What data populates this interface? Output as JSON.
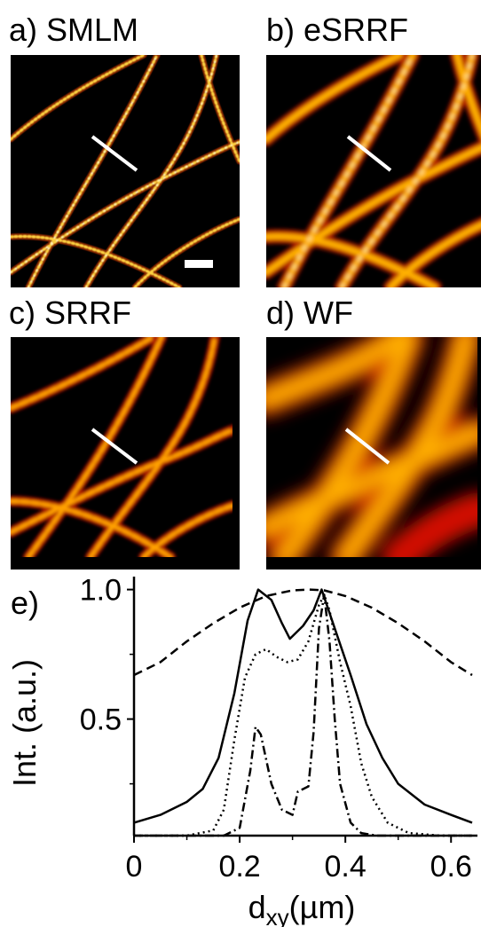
{
  "panels": {
    "a": {
      "label": "a) SMLM"
    },
    "b": {
      "label": "b) eSRRF"
    },
    "c": {
      "label": "c) SRRF"
    },
    "d": {
      "label": "d) WF"
    },
    "e": {
      "label": "e)"
    }
  },
  "chart_data": {
    "type": "line",
    "xlabel_main": "d",
    "xlabel_sub": "xy",
    "xlabel_unit": "(µm)",
    "ylabel": "Int. (a.u.)",
    "xlim": [
      0,
      0.65
    ],
    "ylim": [
      0.05,
      1.05
    ],
    "xticks": [
      {
        "value": 0,
        "label": "0"
      },
      {
        "value": 0.2,
        "label": "0.2"
      },
      {
        "value": 0.4,
        "label": "0.4"
      },
      {
        "value": 0.6,
        "label": "0.6"
      }
    ],
    "yticks": [
      {
        "value": 0.5,
        "label": "0.5"
      },
      {
        "value": 1.0,
        "label": "1.0"
      }
    ],
    "series": [
      {
        "style": "solid",
        "x": [
          0,
          0.05,
          0.1,
          0.13,
          0.16,
          0.19,
          0.215,
          0.235,
          0.26,
          0.28,
          0.295,
          0.32,
          0.34,
          0.355,
          0.38,
          0.41,
          0.44,
          0.47,
          0.5,
          0.55,
          0.6,
          0.64
        ],
        "y": [
          0.1,
          0.13,
          0.18,
          0.23,
          0.35,
          0.6,
          0.88,
          1.0,
          0.96,
          0.87,
          0.81,
          0.86,
          0.92,
          1.0,
          0.85,
          0.67,
          0.48,
          0.35,
          0.25,
          0.17,
          0.13,
          0.1
        ]
      },
      {
        "style": "dotted",
        "x": [
          0,
          0.1,
          0.15,
          0.17,
          0.19,
          0.21,
          0.23,
          0.25,
          0.27,
          0.29,
          0.31,
          0.33,
          0.35,
          0.36,
          0.37,
          0.39,
          0.41,
          0.43,
          0.45,
          0.48,
          0.52,
          0.58,
          0.64
        ],
        "y": [
          0.05,
          0.05,
          0.07,
          0.15,
          0.42,
          0.66,
          0.75,
          0.77,
          0.74,
          0.72,
          0.73,
          0.8,
          0.94,
          0.98,
          0.92,
          0.72,
          0.55,
          0.33,
          0.2,
          0.1,
          0.06,
          0.05,
          0.05
        ]
      },
      {
        "style": "dashdot",
        "x": [
          0,
          0.17,
          0.2,
          0.22,
          0.23,
          0.24,
          0.26,
          0.28,
          0.3,
          0.31,
          0.33,
          0.34,
          0.35,
          0.36,
          0.37,
          0.38,
          0.39,
          0.41,
          0.43,
          0.46,
          0.5,
          0.64
        ],
        "y": [
          0.05,
          0.05,
          0.08,
          0.3,
          0.47,
          0.44,
          0.25,
          0.15,
          0.13,
          0.22,
          0.24,
          0.45,
          0.85,
          0.98,
          0.8,
          0.5,
          0.25,
          0.1,
          0.06,
          0.05,
          0.05,
          0.05
        ]
      },
      {
        "style": "dashed",
        "x": [
          0,
          0.05,
          0.1,
          0.15,
          0.2,
          0.25,
          0.3,
          0.33,
          0.36,
          0.4,
          0.45,
          0.5,
          0.55,
          0.6,
          0.64
        ],
        "y": [
          0.67,
          0.72,
          0.8,
          0.87,
          0.93,
          0.975,
          0.997,
          1.0,
          0.997,
          0.975,
          0.93,
          0.87,
          0.8,
          0.72,
          0.67
        ]
      }
    ]
  }
}
